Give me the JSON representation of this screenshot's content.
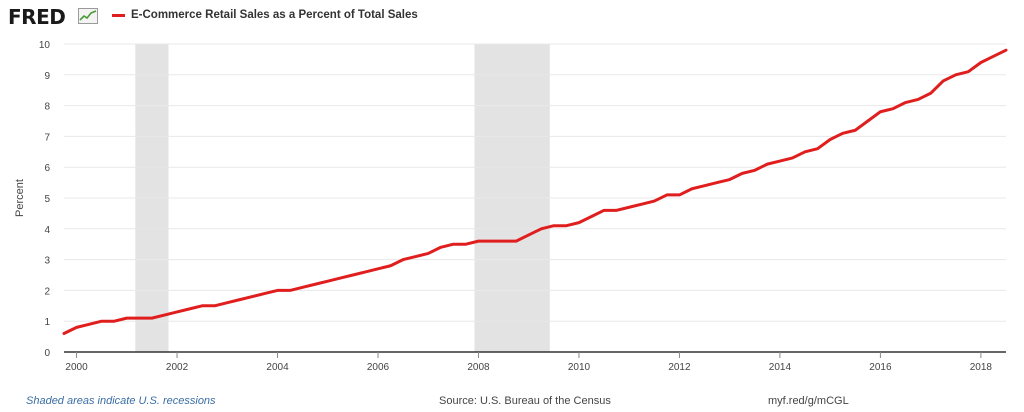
{
  "header": {
    "logo_text": "FRED",
    "logo_icon": "line-chart-icon",
    "legend_label": "E-Commerce Retail Sales as a Percent of Total Sales",
    "legend_color": "#e01e1e"
  },
  "footer": {
    "recessions_note": "Shaded areas indicate U.S. recessions",
    "source": "Source: U.S. Bureau of the Census",
    "short_url": "myf.red/g/mCGL"
  },
  "colors": {
    "series": "#e01e1e",
    "recession_shade": "#e3e3e3",
    "grid": "#e8e8e8",
    "axis": "#333333"
  },
  "chart_data": {
    "type": "line",
    "title": "",
    "xlabel": "",
    "ylabel": "Percent",
    "xlim": [
      1999.75,
      2018.5
    ],
    "ylim": [
      0,
      10
    ],
    "x_ticks": [
      "2000",
      "2002",
      "2004",
      "2006",
      "2008",
      "2010",
      "2012",
      "2014",
      "2016",
      "2018"
    ],
    "y_ticks": [
      "0",
      "1",
      "2",
      "3",
      "4",
      "5",
      "6",
      "7",
      "8",
      "9",
      "10"
    ],
    "grid": "horizontal",
    "recessions": [
      [
        2001.17,
        2001.83
      ],
      [
        2007.92,
        2009.42
      ]
    ],
    "series": [
      {
        "name": "E-Commerce Retail Sales as a Percent of Total Sales",
        "color": "#e01e1e",
        "points": [
          [
            1999.75,
            0.6
          ],
          [
            2000.0,
            0.8
          ],
          [
            2000.25,
            0.9
          ],
          [
            2000.5,
            1.0
          ],
          [
            2000.75,
            1.0
          ],
          [
            2001.0,
            1.1
          ],
          [
            2001.25,
            1.1
          ],
          [
            2001.5,
            1.1
          ],
          [
            2001.75,
            1.2
          ],
          [
            2002.0,
            1.3
          ],
          [
            2002.25,
            1.4
          ],
          [
            2002.5,
            1.5
          ],
          [
            2002.75,
            1.5
          ],
          [
            2003.0,
            1.6
          ],
          [
            2003.25,
            1.7
          ],
          [
            2003.5,
            1.8
          ],
          [
            2003.75,
            1.9
          ],
          [
            2004.0,
            2.0
          ],
          [
            2004.25,
            2.0
          ],
          [
            2004.5,
            2.1
          ],
          [
            2004.75,
            2.2
          ],
          [
            2005.0,
            2.3
          ],
          [
            2005.25,
            2.4
          ],
          [
            2005.5,
            2.5
          ],
          [
            2005.75,
            2.6
          ],
          [
            2006.0,
            2.7
          ],
          [
            2006.25,
            2.8
          ],
          [
            2006.5,
            3.0
          ],
          [
            2006.75,
            3.1
          ],
          [
            2007.0,
            3.2
          ],
          [
            2007.25,
            3.4
          ],
          [
            2007.5,
            3.5
          ],
          [
            2007.75,
            3.5
          ],
          [
            2008.0,
            3.6
          ],
          [
            2008.25,
            3.6
          ],
          [
            2008.5,
            3.6
          ],
          [
            2008.75,
            3.6
          ],
          [
            2009.0,
            3.8
          ],
          [
            2009.25,
            4.0
          ],
          [
            2009.5,
            4.1
          ],
          [
            2009.75,
            4.1
          ],
          [
            2010.0,
            4.2
          ],
          [
            2010.25,
            4.4
          ],
          [
            2010.5,
            4.6
          ],
          [
            2010.75,
            4.6
          ],
          [
            2011.0,
            4.7
          ],
          [
            2011.25,
            4.8
          ],
          [
            2011.5,
            4.9
          ],
          [
            2011.75,
            5.1
          ],
          [
            2012.0,
            5.1
          ],
          [
            2012.25,
            5.3
          ],
          [
            2012.5,
            5.4
          ],
          [
            2012.75,
            5.5
          ],
          [
            2013.0,
            5.6
          ],
          [
            2013.25,
            5.8
          ],
          [
            2013.5,
            5.9
          ],
          [
            2013.75,
            6.1
          ],
          [
            2014.0,
            6.2
          ],
          [
            2014.25,
            6.3
          ],
          [
            2014.5,
            6.5
          ],
          [
            2014.75,
            6.6
          ],
          [
            2015.0,
            6.9
          ],
          [
            2015.25,
            7.1
          ],
          [
            2015.5,
            7.2
          ],
          [
            2015.75,
            7.5
          ],
          [
            2016.0,
            7.8
          ],
          [
            2016.25,
            7.9
          ],
          [
            2016.5,
            8.1
          ],
          [
            2016.75,
            8.2
          ],
          [
            2017.0,
            8.4
          ],
          [
            2017.25,
            8.8
          ],
          [
            2017.5,
            9.0
          ],
          [
            2017.75,
            9.1
          ],
          [
            2018.0,
            9.4
          ],
          [
            2018.25,
            9.6
          ],
          [
            2018.5,
            9.8
          ]
        ]
      }
    ]
  }
}
